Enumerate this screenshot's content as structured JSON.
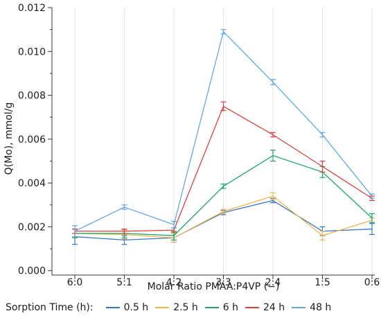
{
  "chart_data": {
    "type": "line",
    "xlabel": "Molar Ratio PMAA:P4VP (−)",
    "ylabel": "Q(Mo), mmol/g",
    "categories": [
      "6:0",
      "5:1",
      "4:2",
      "3:3",
      "2:4",
      "1:5",
      "0:6"
    ],
    "ylim": [
      -0.0002,
      0.012
    ],
    "yticks": [
      "0.000",
      "0.002",
      "0.004",
      "0.006",
      "0.008",
      "0.010",
      "0.012"
    ],
    "legend_title": "Sorption Time (h):",
    "legend_position": "bottom",
    "grid": "vertical",
    "series": [
      {
        "name": "0.5 h",
        "color": "#2e78c7",
        "values": [
          0.00155,
          0.0014,
          0.0015,
          0.00265,
          0.0032,
          0.0018,
          0.0019
        ],
        "errors": [
          0.00035,
          0.0002,
          0.0002,
          0.0001,
          0.0001,
          0.0002,
          0.00025
        ]
      },
      {
        "name": "2.5 h",
        "color": "#f2b447",
        "values": [
          0.0017,
          0.00165,
          0.0015,
          0.0027,
          0.0034,
          0.0016,
          0.0023
        ],
        "errors": [
          0.0002,
          0.0002,
          0.0002,
          0.0001,
          0.00015,
          0.0002,
          0.0001
        ]
      },
      {
        "name": "6 h",
        "color": "#14a86a",
        "values": [
          0.0017,
          0.0017,
          0.0016,
          0.00385,
          0.00525,
          0.0045,
          0.0024
        ],
        "errors": [
          0.0002,
          0.0002,
          0.0002,
          0.0001,
          0.00025,
          0.00025,
          0.0002
        ]
      },
      {
        "name": "24 h",
        "color": "#e63b3b",
        "values": [
          0.0018,
          0.0018,
          0.00185,
          0.0075,
          0.0062,
          0.00475,
          0.0033
        ],
        "errors": [
          0.0001,
          0.0001,
          0.0001,
          0.0002,
          0.0001,
          0.00025,
          0.0001
        ]
      },
      {
        "name": "48 h",
        "color": "#5ea9e6",
        "values": [
          0.0018,
          0.0029,
          0.0021,
          0.0109,
          0.0086,
          0.0062,
          0.0034
        ],
        "errors": [
          0.00025,
          0.0001,
          0.00015,
          0.0001,
          0.00012,
          0.0001,
          0.0001
        ]
      }
    ]
  }
}
